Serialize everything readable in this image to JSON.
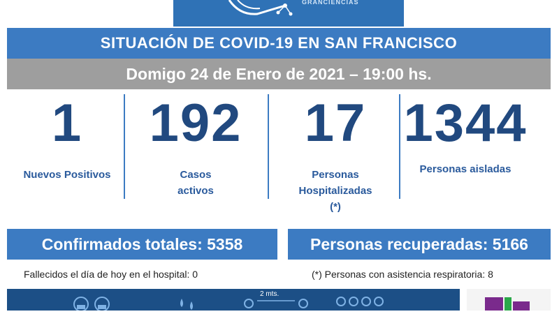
{
  "logo": {
    "text": "GRANCIENCIAS"
  },
  "header": {
    "title": "SITUACIÓN DE COVID-19 EN SAN FRANCISCO",
    "date": "Domigo 24 de Enero de 2021 – 19:00 hs."
  },
  "stats": [
    {
      "value": "1",
      "label_lines": [
        "Nuevos Positivos"
      ]
    },
    {
      "value": "192",
      "label_lines": [
        "Casos",
        "activos"
      ]
    },
    {
      "value": "17",
      "label_lines": [
        "Personas",
        "Hospitalizadas",
        "(*)"
      ]
    },
    {
      "value": "1344",
      "label_lines": [
        "Personas aisladas"
      ]
    }
  ],
  "totals": {
    "confirmed": "Confirmados totales: 5358",
    "recovered": "Personas recuperadas: 5166"
  },
  "notes": {
    "deaths": "Fallecidos el día de hoy en el hospital: 0",
    "respiratory": "(*) Personas con asistencia respiratoria: 8"
  },
  "bottom": {
    "distance_label": "2 mts."
  },
  "colors": {
    "blue": "#3c7bc2",
    "navy": "#21497f",
    "gray": "#9e9e9e"
  }
}
